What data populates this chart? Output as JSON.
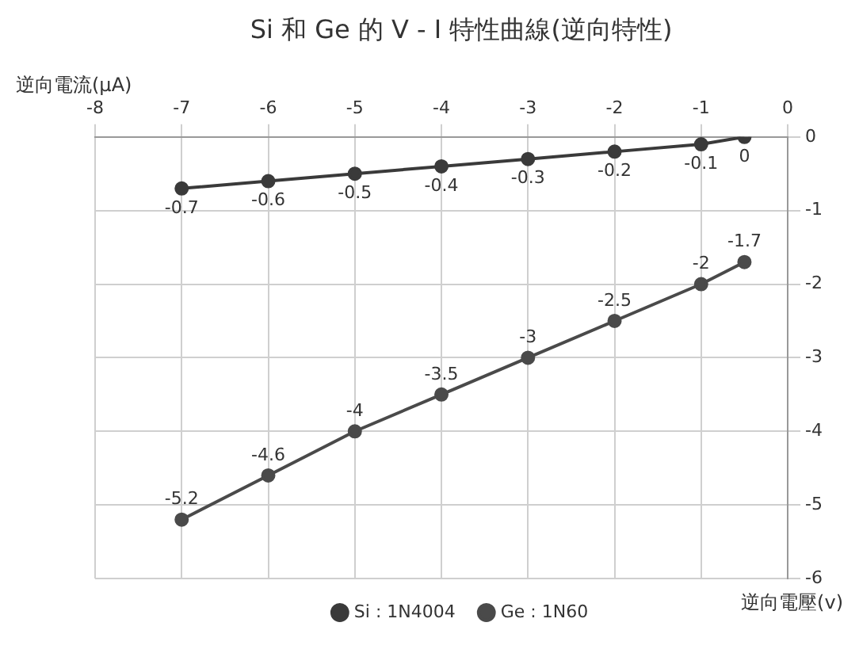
{
  "chart_data": {
    "type": "line",
    "title": "Si 和 Ge 的 V - I 特性曲線(逆向特性)",
    "xlabel": "逆向電壓(v)",
    "ylabel": "逆向電流(μA)",
    "x": [
      -7,
      -6,
      -5,
      -4,
      -3,
      -2,
      -1,
      -0.5
    ],
    "series": [
      {
        "name": "Si : 1N4004",
        "color": "#3a3a3a",
        "values": [
          -0.7,
          -0.6,
          -0.5,
          -0.4,
          -0.3,
          -0.2,
          -0.1,
          0
        ]
      },
      {
        "name": "Ge : 1N60",
        "color": "#4a4a4a",
        "values": [
          -5.2,
          -4.6,
          -4,
          -3.5,
          -3,
          -2.5,
          -2,
          -1.7
        ]
      }
    ],
    "xlim": [
      -8,
      0
    ],
    "xticks": [
      -8,
      -7,
      -6,
      -5,
      -4,
      -3,
      -2,
      -1,
      0
    ],
    "ylim": [
      -6,
      0
    ],
    "yticks": [
      -6,
      -5,
      -4,
      -3,
      -2,
      -1,
      0
    ],
    "grid": true,
    "legend": "bottom",
    "marker": "circle",
    "line_style": "solid",
    "data_labels": true
  }
}
